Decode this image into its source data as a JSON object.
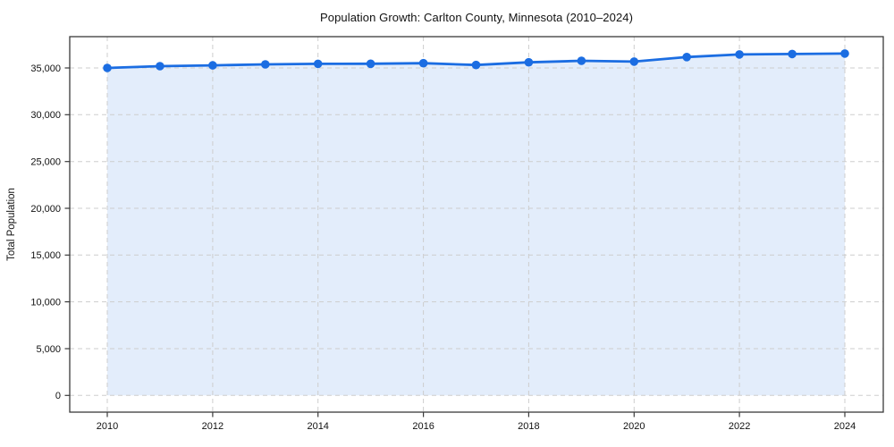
{
  "chart_data": {
    "type": "area",
    "title": "Population Growth: Carlton County, Minnesota (2010–2024)",
    "xlabel": "",
    "ylabel": "Total Population",
    "series_name": "Total Population",
    "x": [
      2010,
      2011,
      2012,
      2013,
      2014,
      2015,
      2016,
      2017,
      2018,
      2019,
      2020,
      2021,
      2022,
      2023,
      2024
    ],
    "values": [
      35000,
      35190,
      35280,
      35380,
      35440,
      35450,
      35510,
      35320,
      35600,
      35760,
      35680,
      36170,
      36440,
      36490,
      36540
    ],
    "xticks": [
      2010,
      2012,
      2014,
      2016,
      2018,
      2020,
      2022,
      2024
    ],
    "xtick_labels": [
      "2010",
      "2012",
      "2014",
      "2016",
      "2018",
      "2020",
      "2022",
      "2024"
    ],
    "yticks": [
      0,
      5000,
      10000,
      15000,
      20000,
      25000,
      30000,
      35000
    ],
    "ytick_labels": [
      "0",
      "5,000",
      "10,000",
      "15,000",
      "20,000",
      "25,000",
      "30,000",
      "35,000"
    ],
    "ylim": [
      0,
      35000
    ],
    "grid": true,
    "grid_style": "dashed",
    "legend": false,
    "marker": "circle",
    "colors": {
      "line": "#1b6de2",
      "marker": "#1b6de2",
      "fill": "#1b6de2",
      "fill_opacity": 0.12,
      "grid": "#cdcdcd",
      "spine": "#3a3a3a",
      "text": "#111111",
      "background": "#ffffff"
    }
  }
}
